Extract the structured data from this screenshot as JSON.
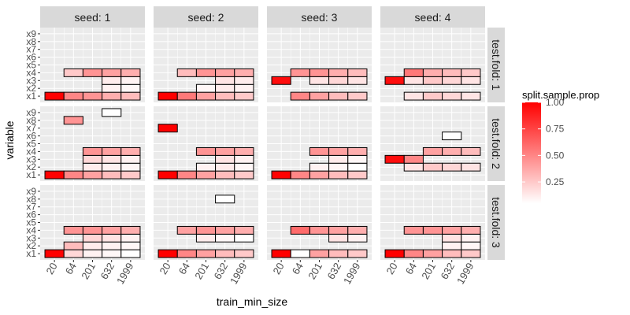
{
  "chart_data": {
    "type": "heatmap",
    "xlabel": "train_min_size",
    "ylabel": "variable",
    "x_categories": [
      "20",
      "64",
      "201",
      "632",
      "1999"
    ],
    "y_categories": [
      "x1",
      "x2",
      "x3",
      "x4",
      "x5",
      "x6",
      "x7",
      "x8",
      "x9"
    ],
    "col_facet_labels": [
      "seed: 1",
      "seed: 2",
      "seed: 3",
      "seed: 4"
    ],
    "row_facet_labels": [
      "test.fold: 1",
      "test.fold: 2",
      "test.fold: 3"
    ],
    "legend": {
      "title": "split.sample.prop",
      "ticks": [
        "0.25",
        "0.50",
        "0.75",
        "1.00"
      ],
      "tick_values": [
        0.25,
        0.5,
        0.75,
        1.0
      ],
      "min": 0.05,
      "max": 1.0,
      "low_color": "#ffffff",
      "high_color": "#ff0000",
      "position": "right"
    },
    "grid": true,
    "colors": {
      "panel_bg": "#ebebeb",
      "strip_bg": "#d9d9d9",
      "grid": "#ffffff",
      "tile_border": "#000000"
    },
    "panels": [
      {
        "row": 0,
        "col": 0,
        "cells": [
          [
            "20",
            "x1",
            1.0
          ],
          [
            "64",
            "x1",
            0.5
          ],
          [
            "201",
            "x1",
            0.45
          ],
          [
            "632",
            "x1",
            0.35
          ],
          [
            "1999",
            "x1",
            0.3
          ],
          [
            "632",
            "x2",
            0.1
          ],
          [
            "1999",
            "x2",
            0.08
          ],
          [
            "632",
            "x3",
            0.12
          ],
          [
            "1999",
            "x3",
            0.1
          ],
          [
            "64",
            "x4",
            0.25
          ],
          [
            "201",
            "x4",
            0.45
          ],
          [
            "632",
            "x4",
            0.4
          ],
          [
            "1999",
            "x4",
            0.35
          ]
        ]
      },
      {
        "row": 0,
        "col": 1,
        "cells": [
          [
            "20",
            "x1",
            1.0
          ],
          [
            "64",
            "x1",
            0.55
          ],
          [
            "201",
            "x1",
            0.4
          ],
          [
            "632",
            "x1",
            0.3
          ],
          [
            "1999",
            "x1",
            0.25
          ],
          [
            "201",
            "x2",
            0.08
          ],
          [
            "632",
            "x2",
            0.12
          ],
          [
            "1999",
            "x2",
            0.1
          ],
          [
            "632",
            "x3",
            0.15
          ],
          [
            "1999",
            "x3",
            0.12
          ],
          [
            "64",
            "x4",
            0.3
          ],
          [
            "201",
            "x4",
            0.45
          ],
          [
            "632",
            "x4",
            0.4
          ],
          [
            "1999",
            "x4",
            0.35
          ]
        ]
      },
      {
        "row": 0,
        "col": 2,
        "cells": [
          [
            "64",
            "x1",
            0.5
          ],
          [
            "201",
            "x1",
            0.4
          ],
          [
            "632",
            "x1",
            0.3
          ],
          [
            "1999",
            "x1",
            0.25
          ],
          [
            "20",
            "x3",
            0.95
          ],
          [
            "201",
            "x3",
            0.15
          ],
          [
            "632",
            "x3",
            0.2
          ],
          [
            "1999",
            "x3",
            0.15
          ],
          [
            "64",
            "x4",
            0.45
          ],
          [
            "201",
            "x4",
            0.45
          ],
          [
            "632",
            "x4",
            0.35
          ],
          [
            "1999",
            "x4",
            0.3
          ]
        ]
      },
      {
        "row": 0,
        "col": 3,
        "cells": [
          [
            "64",
            "x1",
            0.15
          ],
          [
            "201",
            "x1",
            0.25
          ],
          [
            "632",
            "x1",
            0.2
          ],
          [
            "1999",
            "x1",
            0.15
          ],
          [
            "20",
            "x3",
            0.95
          ],
          [
            "64",
            "x3",
            0.15
          ],
          [
            "201",
            "x3",
            0.25
          ],
          [
            "632",
            "x3",
            0.2
          ],
          [
            "1999",
            "x3",
            0.15
          ],
          [
            "64",
            "x4",
            0.55
          ],
          [
            "201",
            "x4",
            0.35
          ],
          [
            "632",
            "x4",
            0.3
          ],
          [
            "1999",
            "x4",
            0.25
          ]
        ]
      },
      {
        "row": 1,
        "col": 0,
        "cells": [
          [
            "20",
            "x1",
            1.0
          ],
          [
            "64",
            "x1",
            0.5
          ],
          [
            "201",
            "x1",
            0.4
          ],
          [
            "632",
            "x1",
            0.3
          ],
          [
            "1999",
            "x1",
            0.25
          ],
          [
            "201",
            "x2",
            0.12
          ],
          [
            "632",
            "x2",
            0.1
          ],
          [
            "1999",
            "x2",
            0.08
          ],
          [
            "201",
            "x3",
            0.2
          ],
          [
            "632",
            "x3",
            0.15
          ],
          [
            "1999",
            "x3",
            0.1
          ],
          [
            "201",
            "x4",
            0.45
          ],
          [
            "632",
            "x4",
            0.4
          ],
          [
            "1999",
            "x4",
            0.35
          ],
          [
            "64",
            "x8",
            0.45
          ],
          [
            "632",
            "x9",
            0.05
          ]
        ]
      },
      {
        "row": 1,
        "col": 1,
        "cells": [
          [
            "20",
            "x1",
            1.0
          ],
          [
            "64",
            "x1",
            0.5
          ],
          [
            "201",
            "x1",
            0.4
          ],
          [
            "632",
            "x1",
            0.3
          ],
          [
            "1999",
            "x1",
            0.25
          ],
          [
            "201",
            "x2",
            0.1
          ],
          [
            "632",
            "x2",
            0.12
          ],
          [
            "1999",
            "x2",
            0.08
          ],
          [
            "632",
            "x3",
            0.15
          ],
          [
            "1999",
            "x3",
            0.1
          ],
          [
            "201",
            "x4",
            0.45
          ],
          [
            "632",
            "x4",
            0.4
          ],
          [
            "1999",
            "x4",
            0.35
          ],
          [
            "20",
            "x7",
            1.0
          ]
        ]
      },
      {
        "row": 1,
        "col": 2,
        "cells": [
          [
            "20",
            "x1",
            1.0
          ],
          [
            "64",
            "x1",
            0.5
          ],
          [
            "201",
            "x1",
            0.4
          ],
          [
            "632",
            "x1",
            0.3
          ],
          [
            "1999",
            "x1",
            0.25
          ],
          [
            "201",
            "x2",
            0.1
          ],
          [
            "632",
            "x2",
            0.08
          ],
          [
            "1999",
            "x2",
            0.05
          ],
          [
            "632",
            "x3",
            0.12
          ],
          [
            "1999",
            "x3",
            0.08
          ],
          [
            "201",
            "x4",
            0.45
          ],
          [
            "632",
            "x4",
            0.4
          ],
          [
            "1999",
            "x4",
            0.35
          ]
        ]
      },
      {
        "row": 1,
        "col": 3,
        "cells": [
          [
            "64",
            "x2",
            0.15
          ],
          [
            "201",
            "x2",
            0.25
          ],
          [
            "632",
            "x2",
            0.2
          ],
          [
            "1999",
            "x2",
            0.15
          ],
          [
            "20",
            "x3",
            0.95
          ],
          [
            "64",
            "x3",
            0.5
          ],
          [
            "201",
            "x4",
            0.4
          ],
          [
            "632",
            "x4",
            0.35
          ],
          [
            "1999",
            "x4",
            0.3
          ],
          [
            "632",
            "x6",
            0.05
          ]
        ]
      },
      {
        "row": 2,
        "col": 0,
        "cells": [
          [
            "20",
            "x1",
            1.0
          ],
          [
            "64",
            "x1",
            0.2
          ],
          [
            "201",
            "x1",
            0.1
          ],
          [
            "632",
            "x1",
            0.08
          ],
          [
            "1999",
            "x1",
            0.05
          ],
          [
            "64",
            "x2",
            0.3
          ],
          [
            "201",
            "x2",
            0.12
          ],
          [
            "632",
            "x2",
            0.1
          ],
          [
            "1999",
            "x2",
            0.08
          ],
          [
            "201",
            "x3",
            0.2
          ],
          [
            "632",
            "x3",
            0.15
          ],
          [
            "1999",
            "x3",
            0.1
          ],
          [
            "64",
            "x4",
            0.45
          ],
          [
            "201",
            "x4",
            0.45
          ],
          [
            "632",
            "x4",
            0.4
          ],
          [
            "1999",
            "x4",
            0.35
          ]
        ]
      },
      {
        "row": 2,
        "col": 1,
        "cells": [
          [
            "20",
            "x1",
            1.0
          ],
          [
            "64",
            "x1",
            0.5
          ],
          [
            "201",
            "x1",
            0.4
          ],
          [
            "632",
            "x1",
            0.3
          ],
          [
            "1999",
            "x1",
            0.25
          ],
          [
            "201",
            "x3",
            0.12
          ],
          [
            "632",
            "x3",
            0.08
          ],
          [
            "1999",
            "x3",
            0.05
          ],
          [
            "64",
            "x4",
            0.4
          ],
          [
            "201",
            "x4",
            0.45
          ],
          [
            "632",
            "x4",
            0.4
          ],
          [
            "1999",
            "x4",
            0.35
          ],
          [
            "632",
            "x8",
            0.05
          ]
        ]
      },
      {
        "row": 2,
        "col": 2,
        "cells": [
          [
            "20",
            "x1",
            1.0
          ],
          [
            "64",
            "x1",
            0.05
          ],
          [
            "201",
            "x1",
            0.4
          ],
          [
            "632",
            "x1",
            0.3
          ],
          [
            "1999",
            "x1",
            0.25
          ],
          [
            "632",
            "x3",
            0.15
          ],
          [
            "1999",
            "x3",
            0.1
          ],
          [
            "64",
            "x4",
            0.6
          ],
          [
            "201",
            "x4",
            0.45
          ],
          [
            "632",
            "x4",
            0.4
          ],
          [
            "1999",
            "x4",
            0.35
          ]
        ]
      },
      {
        "row": 2,
        "col": 3,
        "cells": [
          [
            "20",
            "x1",
            1.0
          ],
          [
            "64",
            "x1",
            0.5
          ],
          [
            "201",
            "x1",
            0.4
          ],
          [
            "632",
            "x1",
            0.3
          ],
          [
            "1999",
            "x1",
            0.25
          ],
          [
            "632",
            "x2",
            0.1
          ],
          [
            "1999",
            "x2",
            0.08
          ],
          [
            "632",
            "x3",
            0.15
          ],
          [
            "1999",
            "x3",
            0.1
          ],
          [
            "64",
            "x4",
            0.45
          ],
          [
            "201",
            "x4",
            0.45
          ],
          [
            "632",
            "x4",
            0.4
          ],
          [
            "1999",
            "x4",
            0.35
          ]
        ]
      }
    ]
  }
}
